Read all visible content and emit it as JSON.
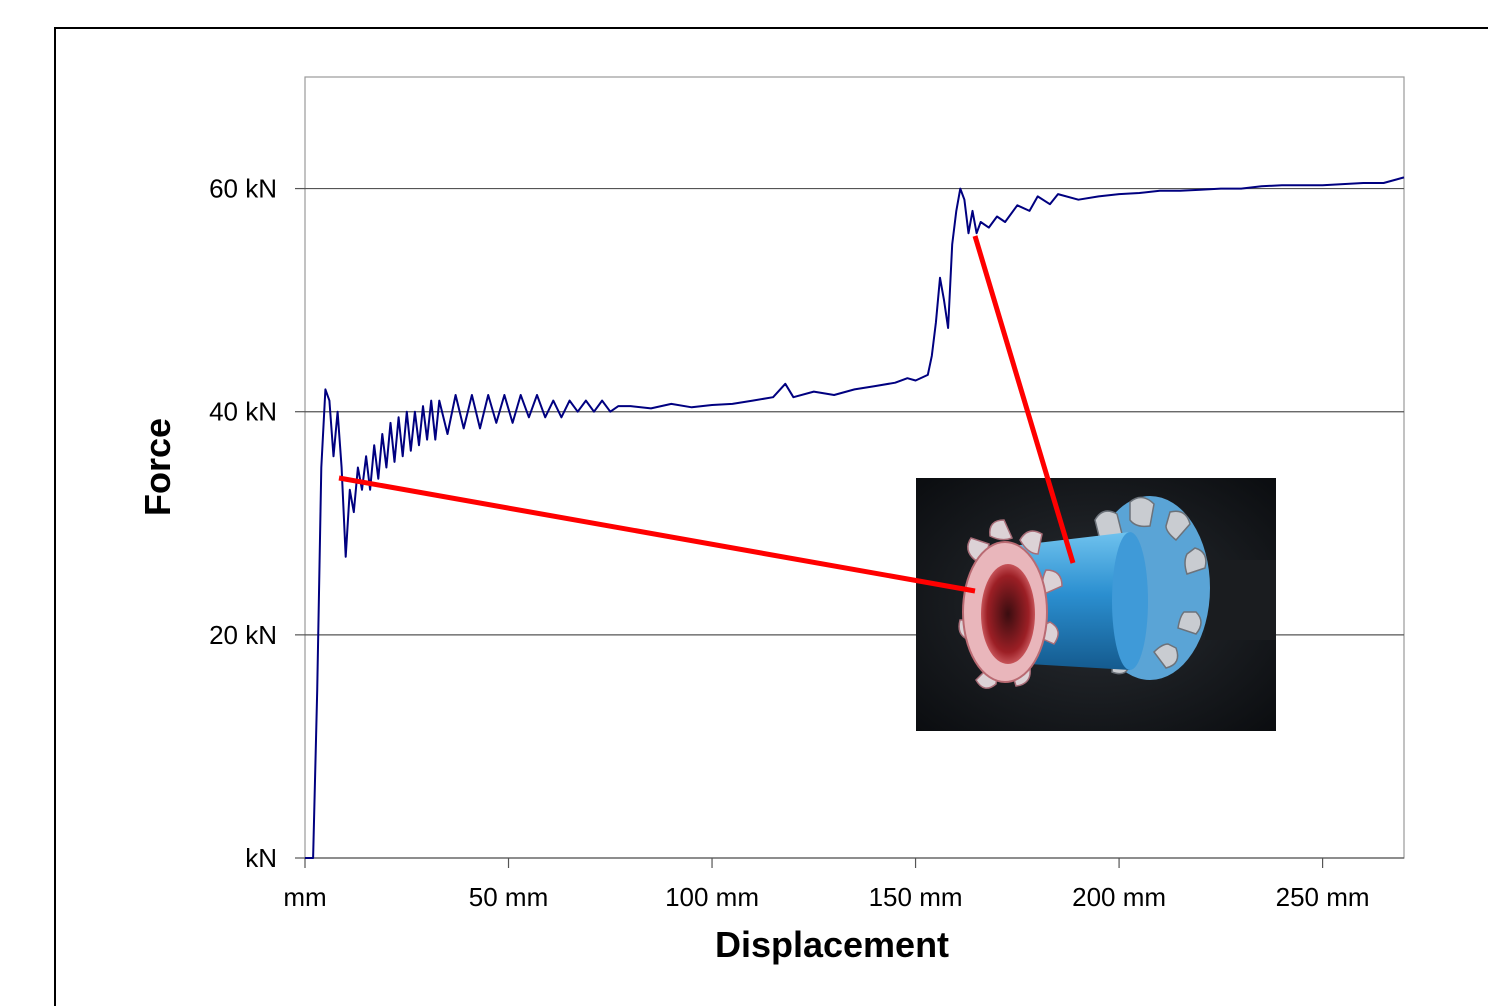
{
  "chart_data": {
    "type": "line",
    "xlabel": "Displacement",
    "ylabel": "Force",
    "xlim": [
      0,
      270
    ],
    "ylim": [
      0,
      70
    ],
    "x_ticks": [
      0,
      50,
      100,
      150,
      200,
      250
    ],
    "x_tick_labels": [
      "mm",
      "50 mm",
      "100 mm",
      "150 mm",
      "200 mm",
      "250 mm"
    ],
    "y_ticks": [
      0,
      20,
      40,
      60
    ],
    "y_tick_labels": [
      "kN",
      "20 kN",
      "40 kN",
      "60 kN"
    ],
    "grid": "horizontal",
    "series": [
      {
        "color": "#000080",
        "points": [
          [
            0,
            0
          ],
          [
            1,
            0
          ],
          [
            2,
            0
          ],
          [
            3,
            15
          ],
          [
            4,
            35
          ],
          [
            5,
            42
          ],
          [
            6,
            41
          ],
          [
            7,
            36
          ],
          [
            8,
            40
          ],
          [
            9,
            35
          ],
          [
            10,
            27
          ],
          [
            11,
            33
          ],
          [
            12,
            31
          ],
          [
            13,
            35
          ],
          [
            14,
            33
          ],
          [
            15,
            36
          ],
          [
            16,
            33
          ],
          [
            17,
            37
          ],
          [
            18,
            34
          ],
          [
            19,
            38
          ],
          [
            20,
            35
          ],
          [
            21,
            39
          ],
          [
            22,
            35.5
          ],
          [
            23,
            39.5
          ],
          [
            24,
            36
          ],
          [
            25,
            40
          ],
          [
            26,
            36.5
          ],
          [
            27,
            40
          ],
          [
            28,
            37
          ],
          [
            29,
            40.5
          ],
          [
            30,
            37.5
          ],
          [
            31,
            41
          ],
          [
            32,
            37.5
          ],
          [
            33,
            41
          ],
          [
            35,
            38
          ],
          [
            37,
            41.5
          ],
          [
            39,
            38.5
          ],
          [
            41,
            41.5
          ],
          [
            43,
            38.5
          ],
          [
            45,
            41.5
          ],
          [
            47,
            39
          ],
          [
            49,
            41.5
          ],
          [
            51,
            39
          ],
          [
            53,
            41.5
          ],
          [
            55,
            39.5
          ],
          [
            57,
            41.5
          ],
          [
            59,
            39.5
          ],
          [
            61,
            41
          ],
          [
            63,
            39.5
          ],
          [
            65,
            41
          ],
          [
            67,
            40
          ],
          [
            69,
            41
          ],
          [
            71,
            40
          ],
          [
            73,
            41
          ],
          [
            75,
            40
          ],
          [
            77,
            40.5
          ],
          [
            80,
            40.5
          ],
          [
            85,
            40.3
          ],
          [
            90,
            40.7
          ],
          [
            95,
            40.4
          ],
          [
            100,
            40.6
          ],
          [
            105,
            40.7
          ],
          [
            110,
            41
          ],
          [
            115,
            41.3
          ],
          [
            118,
            42.5
          ],
          [
            120,
            41.3
          ],
          [
            125,
            41.8
          ],
          [
            130,
            41.5
          ],
          [
            135,
            42
          ],
          [
            140,
            42.3
          ],
          [
            145,
            42.6
          ],
          [
            148,
            43
          ],
          [
            150,
            42.8
          ],
          [
            153,
            43.3
          ],
          [
            154,
            45
          ],
          [
            155,
            48
          ],
          [
            156,
            52
          ],
          [
            157,
            50
          ],
          [
            158,
            47.5
          ],
          [
            159,
            55
          ],
          [
            160,
            58
          ],
          [
            161,
            60
          ],
          [
            162,
            59
          ],
          [
            163,
            56
          ],
          [
            164,
            58
          ],
          [
            165,
            56
          ],
          [
            166,
            57
          ],
          [
            168,
            56.5
          ],
          [
            170,
            57.5
          ],
          [
            172,
            57
          ],
          [
            175,
            58.5
          ],
          [
            178,
            58
          ],
          [
            180,
            59.3
          ],
          [
            183,
            58.6
          ],
          [
            185,
            59.5
          ],
          [
            190,
            59
          ],
          [
            195,
            59.3
          ],
          [
            200,
            59.5
          ],
          [
            205,
            59.6
          ],
          [
            210,
            59.8
          ],
          [
            215,
            59.8
          ],
          [
            220,
            59.9
          ],
          [
            225,
            60
          ],
          [
            230,
            60
          ],
          [
            235,
            60.2
          ],
          [
            240,
            60.3
          ],
          [
            245,
            60.3
          ],
          [
            250,
            60.3
          ],
          [
            255,
            60.4
          ],
          [
            260,
            60.5
          ],
          [
            265,
            60.5
          ],
          [
            268,
            60.8
          ],
          [
            270,
            61
          ]
        ]
      }
    ],
    "annotations": [
      {
        "type": "leader-line",
        "color": "#ff0000",
        "from": [
          8,
          34
        ]
      },
      {
        "type": "leader-line",
        "color": "#ff0000",
        "from": [
          164,
          56
        ]
      }
    ],
    "inset_photo": "crushed-tube-photo"
  }
}
